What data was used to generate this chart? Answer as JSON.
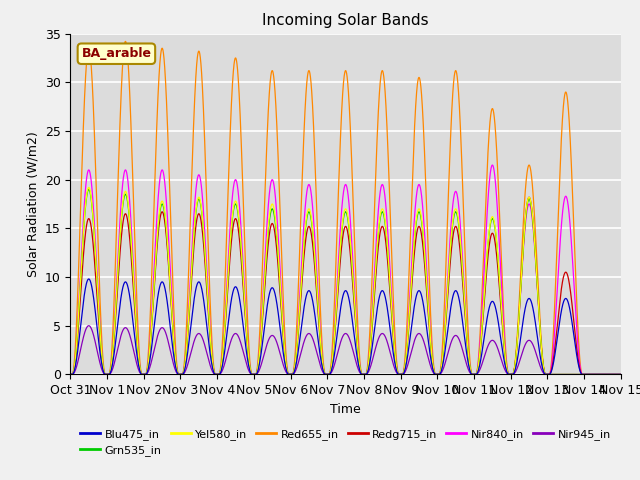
{
  "title": "Incoming Solar Bands",
  "xlabel": "Time",
  "ylabel": "Solar Radiation (W/m2)",
  "ylim": [
    0,
    35
  ],
  "annotation_text": "BA_arable",
  "legend_entries": [
    {
      "label": "Blu475_in",
      "color": "#0000cc"
    },
    {
      "label": "Grn535_in",
      "color": "#00cc00"
    },
    {
      "label": "Yel580_in",
      "color": "#ffff00"
    },
    {
      "label": "Red655_in",
      "color": "#ff8800"
    },
    {
      "label": "Redg715_in",
      "color": "#cc0000"
    },
    {
      "label": "Nir840_in",
      "color": "#ff00ff"
    },
    {
      "label": "Nir945_in",
      "color": "#8800bb"
    }
  ],
  "series": {
    "Red655_in": {
      "color": "#ff8800",
      "peak_values": [
        33.5,
        34.2,
        33.5,
        33.2,
        32.5,
        31.2,
        31.2,
        31.2,
        31.2,
        30.5,
        31.2,
        27.3,
        21.5,
        29.0
      ],
      "sigma": 0.18
    },
    "Nir840_in": {
      "color": "#ff00ff",
      "peak_values": [
        21.0,
        21.0,
        21.0,
        20.5,
        20.0,
        20.0,
        19.5,
        19.5,
        19.5,
        19.5,
        18.8,
        21.5,
        17.5,
        18.3
      ],
      "sigma": 0.2
    },
    "Redg715_in": {
      "color": "#cc0000",
      "peak_values": [
        16.0,
        16.5,
        16.7,
        16.5,
        16.0,
        15.5,
        15.2,
        15.2,
        15.2,
        15.2,
        15.2,
        14.5,
        18.2,
        10.5
      ],
      "sigma": 0.18
    },
    "Grn535_in": {
      "color": "#00cc00",
      "peak_values": [
        19.0,
        18.5,
        17.5,
        18.0,
        17.5,
        17.0,
        16.7,
        16.7,
        16.7,
        16.7,
        16.7,
        16.0,
        18.0,
        0
      ],
      "sigma": 0.18
    },
    "Yel580_in": {
      "color": "#ffff00",
      "peak_values": [
        19.2,
        18.8,
        17.8,
        18.2,
        17.8,
        17.5,
        17.0,
        17.0,
        17.0,
        17.0,
        17.0,
        16.2,
        18.2,
        0
      ],
      "sigma": 0.18
    },
    "Nir945_in": {
      "color": "#8800bb",
      "peak_values": [
        5.0,
        4.8,
        4.8,
        4.2,
        4.2,
        4.0,
        4.2,
        4.2,
        4.2,
        4.2,
        4.0,
        3.5,
        3.5,
        0
      ],
      "sigma": 0.2
    },
    "Blu475_in": {
      "color": "#0000cc",
      "peak_values": [
        9.8,
        9.5,
        9.5,
        9.5,
        9.0,
        8.9,
        8.6,
        8.6,
        8.6,
        8.6,
        8.6,
        7.5,
        7.8,
        7.8
      ],
      "sigma": 0.18
    }
  },
  "xtick_labels": [
    "Oct 31",
    "Nov 1",
    "Nov 2",
    "Nov 3",
    "Nov 4",
    "Nov 5",
    "Nov 6",
    "Nov 7",
    "Nov 8",
    "Nov 9",
    "Nov 10",
    "Nov 11",
    "Nov 12",
    "Nov 13",
    "Nov 14",
    "Nov 15"
  ],
  "xtick_positions": [
    0,
    1,
    2,
    3,
    4,
    5,
    6,
    7,
    8,
    9,
    10,
    11,
    12,
    13,
    14,
    15
  ],
  "plot_bg_color": "#dcdcdc",
  "fig_bg_color": "#f0f0f0",
  "grid_color": "#ffffff",
  "yticks": [
    0,
    5,
    10,
    15,
    20,
    25,
    30,
    35
  ]
}
